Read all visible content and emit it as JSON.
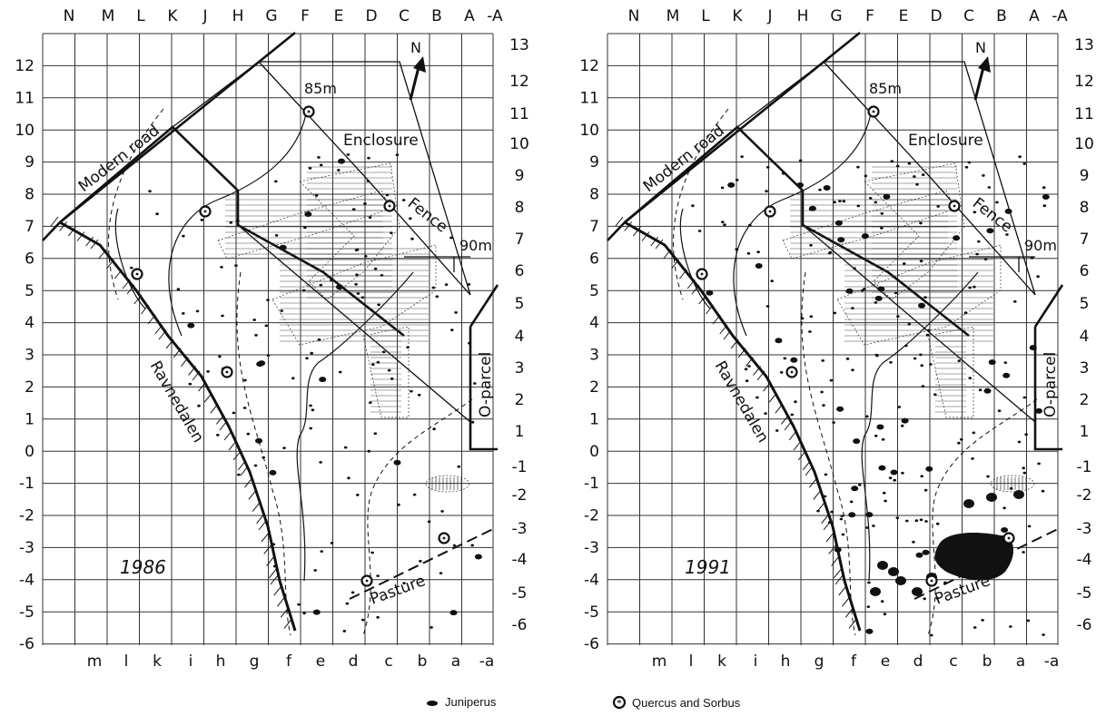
{
  "top_col_labels": [
    "N",
    "M",
    "L",
    "K",
    "J",
    "H",
    "G",
    "F",
    "E",
    "D",
    "C",
    "B",
    "A",
    "-A"
  ],
  "bottom_col_labels": [
    "m",
    "l",
    "k",
    "i",
    "h",
    "g",
    "f",
    "e",
    "d",
    "c",
    "b",
    "a",
    "-a"
  ],
  "left_row_labels": [
    "12",
    "11",
    "10",
    "9",
    "8",
    "7",
    "6",
    "5",
    "4",
    "3",
    "2",
    "1",
    "0",
    "-1",
    "-2",
    "-3",
    "-4",
    "-5",
    "-6"
  ],
  "right_row_labels": [
    "13",
    "12",
    "11",
    "10",
    "9",
    "8",
    "7",
    "6",
    "5",
    "4",
    "3",
    "2",
    "1",
    "-1",
    "-2",
    "-3",
    "-4",
    "-5",
    "-6"
  ],
  "panels": [
    {
      "id": "1986",
      "year_label": "1986",
      "labels": {
        "modern_road": "Modern road",
        "enclosure": "Enclosure",
        "fence": "Fence",
        "height_85": "85m",
        "height_90": "90m",
        "ravnedalen": "Ravnedalen",
        "o_parcel": "O-parcel",
        "pasture": "Pasture",
        "north": "N"
      },
      "juniperus_cluster": false
    },
    {
      "id": "1991",
      "year_label": "1991",
      "labels": {
        "modern_road": "Modern road",
        "enclosure": "Enclosure",
        "fence": "Fence",
        "height_85": "85m",
        "height_90": "90m",
        "ravnedalen": "Ravnedalen",
        "o_parcel": "O-parcel",
        "pasture": "Pasture",
        "north": "N"
      },
      "juniperus_cluster": true
    }
  ],
  "legend": {
    "juniperus": "Juniperus",
    "quercus_sorbus": "Quercus and Sorbus"
  }
}
